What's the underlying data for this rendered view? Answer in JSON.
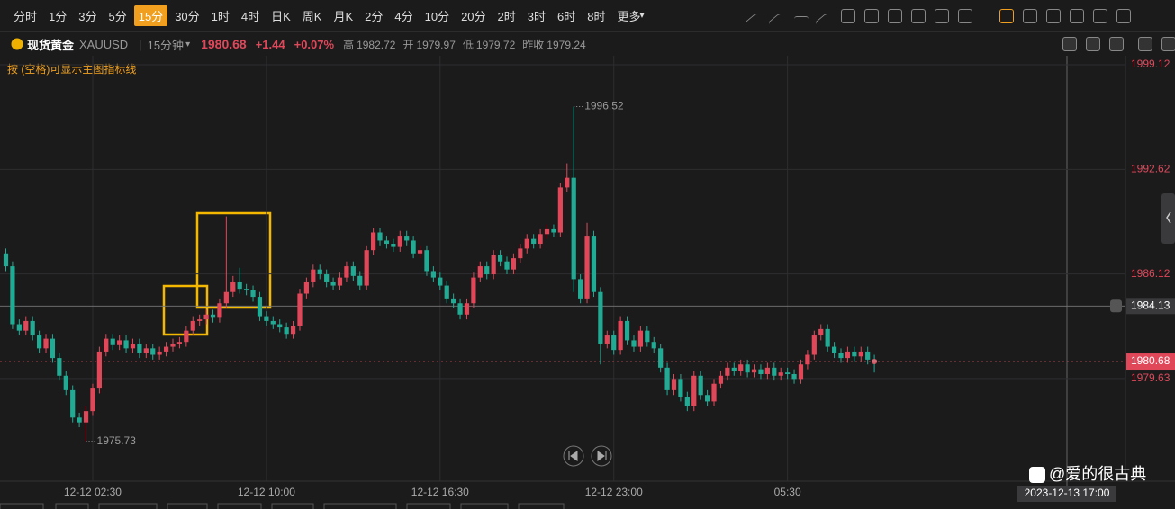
{
  "toolbar": {
    "intervals": [
      "分时",
      "1分",
      "3分",
      "5分",
      "15分",
      "30分",
      "1时",
      "4时",
      "日K",
      "周K",
      "月K",
      "2分",
      "4分",
      "10分",
      "20分",
      "2时",
      "3时",
      "6时",
      "8时"
    ],
    "active_interval": "15分",
    "more": "更多"
  },
  "symbol": {
    "name": "现货黄金",
    "code": "XAUUSD",
    "period": "15分钟",
    "price": 1980.68,
    "change": "+1.44",
    "change_pct": "+0.07%",
    "stats": [
      {
        "label": "高",
        "value": 1982.72
      },
      {
        "label": "开",
        "value": 1979.97
      },
      {
        "label": "低",
        "value": 1979.72
      },
      {
        "label": "昨收",
        "value": 1979.24
      }
    ]
  },
  "hint": "按 (空格)可显示主图指标线",
  "watermark": "@爱的很古典",
  "chart_data": {
    "type": "candlestick",
    "up_color": "#e0485a",
    "down_color": "#22ab94",
    "grid": true,
    "ylim": [
      1973.25,
      1999.68
    ],
    "yticks": [
      1999.12,
      1992.62,
      1986.12,
      1979.63
    ],
    "last_price": 1980.68,
    "crosshair": {
      "price": 1984.13,
      "time": "2023-12-13 17:00"
    },
    "extremes": [
      1996.52,
      1975.73
    ],
    "categories": [
      null,
      null,
      null,
      null,
      null,
      null,
      null,
      null,
      null,
      null,
      null,
      null,
      null,
      "12-12 02:30",
      null,
      null,
      null,
      null,
      null,
      null,
      null,
      null,
      null,
      null,
      null,
      null,
      null,
      null,
      null,
      null,
      null,
      null,
      null,
      null,
      null,
      null,
      null,
      null,
      null,
      "12-12 10:00",
      null,
      null,
      null,
      null,
      null,
      null,
      null,
      null,
      null,
      null,
      null,
      null,
      null,
      null,
      null,
      null,
      null,
      null,
      null,
      null,
      null,
      null,
      null,
      null,
      null,
      "12-12 16:30",
      null,
      null,
      null,
      null,
      null,
      null,
      null,
      null,
      null,
      null,
      null,
      null,
      null,
      null,
      null,
      null,
      null,
      null,
      null,
      null,
      null,
      null,
      null,
      null,
      null,
      "12-12 23:00",
      null,
      null,
      null,
      null,
      null,
      null,
      null,
      null,
      null,
      null,
      null,
      null,
      null,
      null,
      null,
      null,
      null,
      null,
      null,
      null,
      null,
      null,
      null,
      null,
      null,
      "05:30",
      null,
      null,
      null,
      null,
      null,
      null,
      null,
      null,
      null,
      null,
      null,
      null,
      null
    ],
    "open": [
      1987.4,
      1986.6,
      1983.0,
      1982.6,
      1983.2,
      1982.3,
      1981.5,
      1982.1,
      1980.9,
      1979.8,
      1978.9,
      1977.2,
      1976.9,
      1977.6,
      1979.0,
      1981.3,
      1982.1,
      1981.7,
      1982.0,
      1981.5,
      1981.8,
      1981.2,
      1981.5,
      1981.1,
      1981.3,
      1981.6,
      1981.8,
      1981.9,
      1982.6,
      1983.2,
      1983.3,
      1983.6,
      1983.4,
      1984.3,
      1985.0,
      1985.6,
      1985.2,
      1985.1,
      1984.7,
      1983.5,
      1983.2,
      1983.0,
      1982.8,
      1982.4,
      1982.9,
      1984.9,
      1985.6,
      1986.4,
      1986.1,
      1985.6,
      1985.4,
      1985.9,
      1986.6,
      1986.0,
      1985.4,
      1987.6,
      1988.7,
      1988.2,
      1988.0,
      1987.8,
      1988.5,
      1988.2,
      1987.4,
      1987.6,
      1986.3,
      1985.9,
      1985.4,
      1984.6,
      1984.3,
      1983.6,
      1984.3,
      1985.9,
      1986.6,
      1986.1,
      1987.3,
      1986.9,
      1986.4,
      1987.1,
      1987.7,
      1988.3,
      1988.0,
      1988.6,
      1988.9,
      1988.7,
      1991.5,
      1992.1,
      1985.8,
      1984.6,
      1988.5,
      1985.0,
      1981.8,
      1982.3,
      1981.4,
      1983.2,
      1982.0,
      1981.6,
      1982.6,
      1981.9,
      1981.5,
      1980.3,
      1978.9,
      1979.6,
      1978.5,
      1977.9,
      1979.8,
      1978.6,
      1978.2,
      1979.3,
      1979.8,
      1980.3,
      1980.1,
      1980.5,
      1980.0,
      1980.2,
      1979.9,
      1980.3,
      1979.8,
      1980.0,
      1979.9,
      1979.6,
      1980.5,
      1981.1,
      1982.3,
      1982.7,
      1981.6,
      1981.2,
      1980.9,
      1981.3,
      1981.0,
      1981.3,
      1980.8
    ],
    "high": [
      1987.7,
      1986.9,
      1983.3,
      1983.5,
      1983.5,
      1982.6,
      1982.4,
      1982.4,
      1981.2,
      1980.1,
      1979.2,
      1977.5,
      1977.9,
      1979.3,
      1981.6,
      1982.4,
      1982.4,
      1982.3,
      1982.3,
      1982.1,
      1982.1,
      1981.8,
      1981.8,
      1981.6,
      1981.9,
      1982.1,
      1982.2,
      1982.9,
      1983.5,
      1983.6,
      1983.9,
      1983.9,
      1984.6,
      1989.7,
      1986.0,
      1986.5,
      1985.5,
      1985.4,
      1985.0,
      1983.8,
      1983.5,
      1983.3,
      1983.1,
      1983.2,
      1985.2,
      1985.9,
      1986.7,
      1986.7,
      1986.4,
      1985.9,
      1986.2,
      1986.9,
      1986.9,
      1986.3,
      1987.9,
      1989.0,
      1989.0,
      1988.5,
      1988.3,
      1988.8,
      1988.8,
      1988.5,
      1987.9,
      1987.9,
      1986.6,
      1986.2,
      1985.7,
      1984.9,
      1984.6,
      1984.6,
      1986.2,
      1986.9,
      1986.9,
      1987.6,
      1987.6,
      1987.2,
      1987.4,
      1988.0,
      1988.6,
      1988.6,
      1988.9,
      1989.2,
      1989.2,
      1991.8,
      1993.0,
      1996.52,
      1986.1,
      1989.3,
      1988.8,
      1985.3,
      1982.6,
      1982.6,
      1983.5,
      1983.5,
      1982.3,
      1982.9,
      1982.9,
      1982.2,
      1981.8,
      1980.6,
      1979.9,
      1979.9,
      1978.8,
      1980.1,
      1980.1,
      1978.9,
      1979.6,
      1980.1,
      1980.6,
      1980.6,
      1980.8,
      1980.8,
      1980.5,
      1980.5,
      1980.6,
      1980.6,
      1980.3,
      1980.3,
      1980.2,
      1980.8,
      1981.4,
      1982.6,
      1983.0,
      1983.0,
      1981.9,
      1981.5,
      1981.6,
      1981.6,
      1981.6,
      1981.6,
      1981.1
    ],
    "low": [
      1986.3,
      1982.7,
      1982.3,
      1982.3,
      1982.0,
      1981.2,
      1981.2,
      1980.6,
      1979.5,
      1978.6,
      1976.9,
      1976.6,
      1975.73,
      1977.3,
      1978.7,
      1981.0,
      1981.4,
      1981.4,
      1981.2,
      1981.2,
      1980.9,
      1980.9,
      1980.8,
      1980.8,
      1981.0,
      1981.3,
      1981.5,
      1981.6,
      1982.3,
      1982.9,
      1983.0,
      1983.1,
      1983.1,
      1984.0,
      1984.7,
      1984.9,
      1984.8,
      1984.4,
      1983.2,
      1982.9,
      1982.7,
      1982.5,
      1982.1,
      1982.1,
      1982.6,
      1984.6,
      1985.3,
      1985.8,
      1985.3,
      1985.1,
      1985.1,
      1985.6,
      1985.7,
      1985.1,
      1985.1,
      1987.3,
      1987.9,
      1987.7,
      1987.5,
      1987.5,
      1987.9,
      1987.1,
      1987.1,
      1986.0,
      1985.6,
      1985.1,
      1984.3,
      1984.0,
      1983.3,
      1983.3,
      1984.0,
      1985.6,
      1985.8,
      1985.8,
      1986.6,
      1986.1,
      1986.1,
      1986.8,
      1987.4,
      1987.7,
      1987.7,
      1988.3,
      1988.4,
      1988.4,
      1991.2,
      1985.0,
      1984.3,
      1984.3,
      1984.7,
      1980.5,
      1981.5,
      1981.1,
      1981.1,
      1981.7,
      1981.3,
      1981.3,
      1981.6,
      1981.2,
      1980.0,
      1978.6,
      1978.6,
      1978.2,
      1977.6,
      1977.6,
      1978.3,
      1977.9,
      1977.9,
      1979.0,
      1979.5,
      1979.8,
      1979.8,
      1979.7,
      1979.7,
      1979.6,
      1979.6,
      1979.5,
      1979.5,
      1979.6,
      1979.3,
      1979.3,
      1980.2,
      1980.8,
      1982.0,
      1981.3,
      1980.9,
      1980.6,
      1980.6,
      1980.7,
      1980.7,
      1980.5,
      1980.0
    ],
    "close": [
      1986.6,
      1983.0,
      1982.6,
      1983.2,
      1982.3,
      1981.5,
      1982.1,
      1980.9,
      1979.8,
      1978.9,
      1977.2,
      1976.9,
      1977.6,
      1979.0,
      1981.3,
      1982.1,
      1981.7,
      1982.0,
      1981.5,
      1981.8,
      1981.2,
      1981.5,
      1981.1,
      1981.3,
      1981.6,
      1981.8,
      1981.9,
      1982.6,
      1983.2,
      1983.3,
      1983.6,
      1983.4,
      1984.3,
      1985.0,
      1985.6,
      1985.2,
      1985.1,
      1984.7,
      1983.5,
      1983.2,
      1983.0,
      1982.8,
      1982.4,
      1982.9,
      1984.9,
      1985.6,
      1986.4,
      1986.1,
      1985.6,
      1985.4,
      1985.9,
      1986.6,
      1986.0,
      1985.4,
      1987.6,
      1988.7,
      1988.2,
      1988.0,
      1987.8,
      1988.5,
      1988.2,
      1987.4,
      1987.6,
      1986.3,
      1985.9,
      1985.4,
      1984.6,
      1984.3,
      1983.6,
      1984.3,
      1985.9,
      1986.6,
      1986.1,
      1987.3,
      1986.9,
      1986.4,
      1987.1,
      1987.7,
      1988.3,
      1988.0,
      1988.6,
      1988.9,
      1988.7,
      1991.5,
      1992.1,
      1985.8,
      1984.6,
      1988.5,
      1985.0,
      1981.8,
      1982.3,
      1981.4,
      1983.2,
      1982.0,
      1981.6,
      1982.6,
      1981.9,
      1981.5,
      1980.3,
      1978.9,
      1979.6,
      1978.5,
      1977.9,
      1979.8,
      1978.6,
      1978.2,
      1979.3,
      1979.8,
      1980.3,
      1980.1,
      1980.5,
      1980.0,
      1980.2,
      1979.9,
      1980.3,
      1979.8,
      1980.0,
      1979.9,
      1979.6,
      1980.5,
      1981.1,
      1982.3,
      1982.7,
      1981.6,
      1981.2,
      1980.9,
      1981.3,
      1981.0,
      1981.3,
      1980.8,
      1980.68
    ]
  }
}
